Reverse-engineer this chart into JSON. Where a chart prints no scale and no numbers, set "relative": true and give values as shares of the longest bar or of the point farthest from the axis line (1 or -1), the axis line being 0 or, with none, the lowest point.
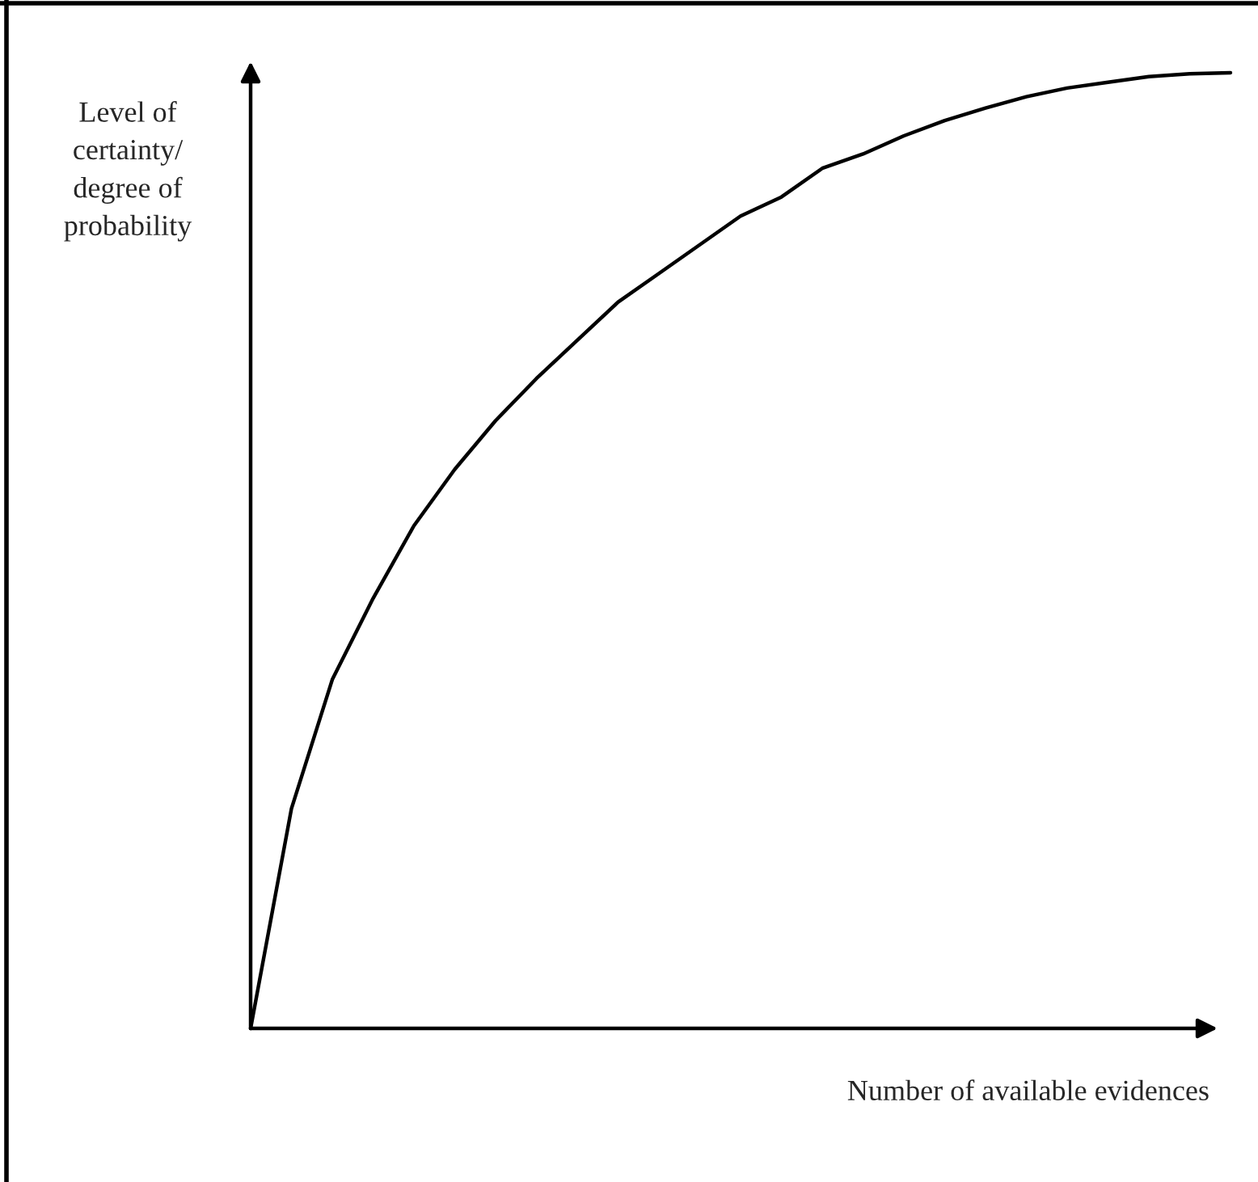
{
  "chart_data": {
    "type": "line",
    "xlabel": "Number of available evidences",
    "ylabel": "Level of\ncertainty/\ndegree of\nprobability",
    "relative": true,
    "color": "#000000",
    "categories": [
      null,
      null,
      null,
      null,
      null,
      null,
      null,
      null,
      null,
      null,
      null,
      null,
      null,
      null,
      null,
      null,
      null,
      null,
      null,
      null,
      null,
      null,
      null,
      null,
      null
    ],
    "values": [
      0,
      0.23,
      0.365,
      0.45,
      0.526,
      0.585,
      0.636,
      0.68,
      0.72,
      0.76,
      0.79,
      0.82,
      0.85,
      0.87,
      0.9,
      0.915,
      0.934,
      0.95,
      0.963,
      0.975,
      0.984,
      0.99,
      0.996,
      0.999,
      1
    ]
  }
}
